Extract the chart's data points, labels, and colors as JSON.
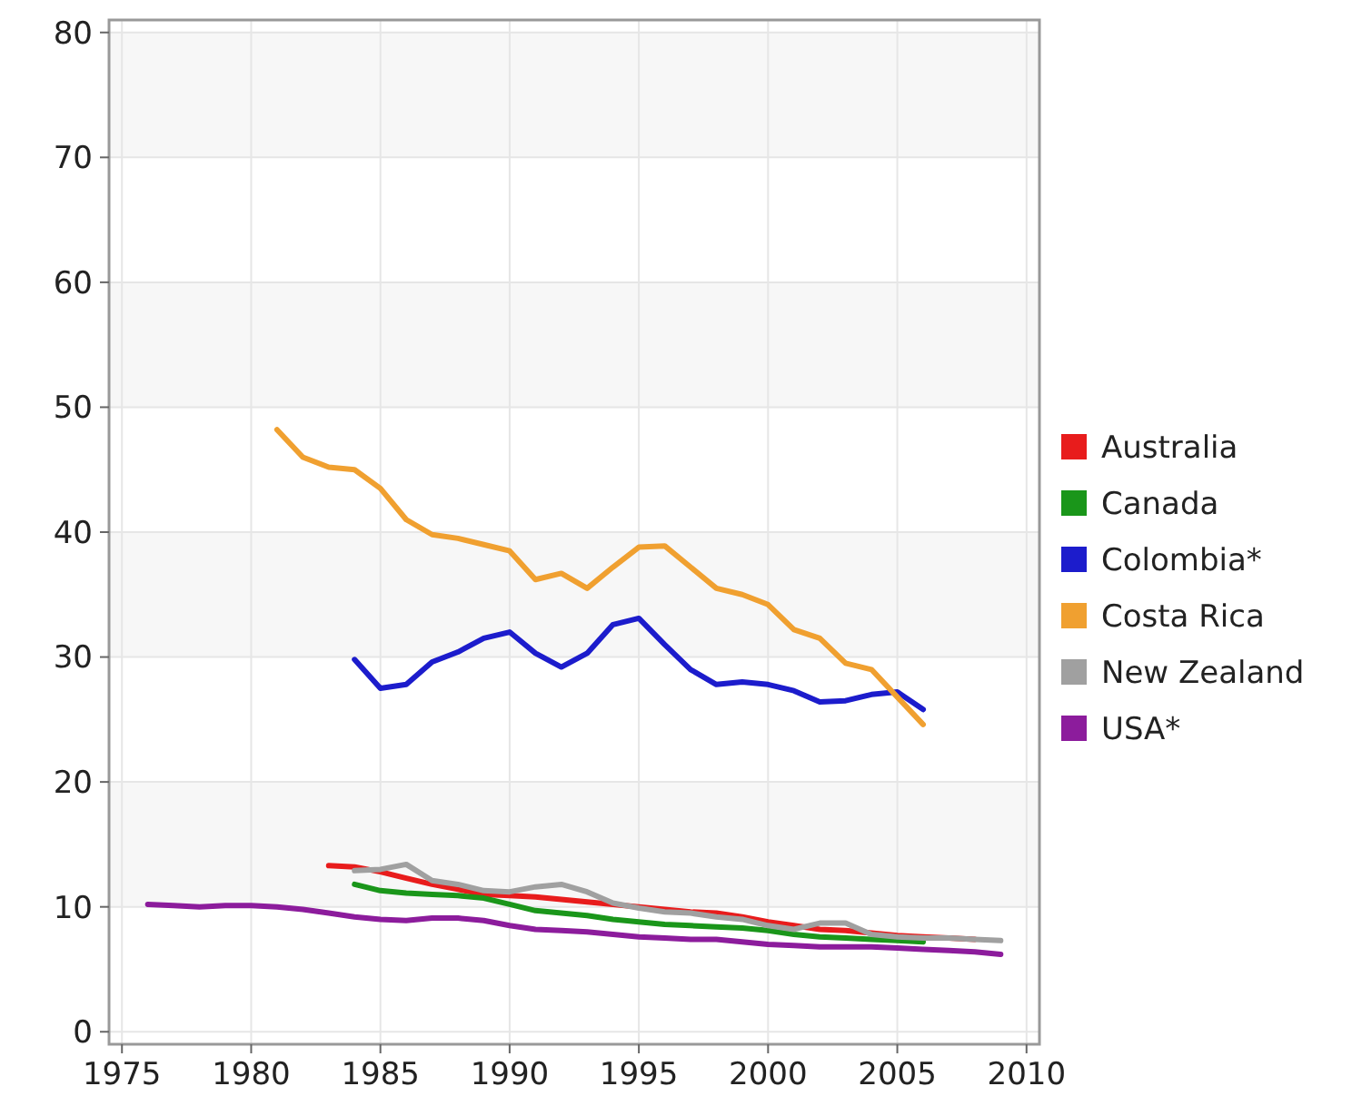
{
  "chart_data": {
    "type": "line",
    "xlim": [
      1974.5,
      2010.5
    ],
    "ylim": [
      -1,
      81
    ],
    "xticks": [
      1975,
      1980,
      1985,
      1990,
      1995,
      2000,
      2005,
      2010
    ],
    "yticks": [
      0,
      10,
      20,
      30,
      40,
      50,
      60,
      70,
      80
    ],
    "grid": true,
    "legend": "right",
    "marker": "none",
    "line_style": "solid",
    "series": [
      {
        "name": "Australia",
        "color": "#e81c1c",
        "x": [
          1983,
          1984,
          1985,
          1986,
          1987,
          1988,
          1989,
          1990,
          1991,
          1992,
          1993,
          1994,
          1995,
          1996,
          1997,
          1998,
          1999,
          2000,
          2001,
          2002,
          2003,
          2004,
          2005,
          2006,
          2007,
          2008
        ],
        "values": [
          13.3,
          13.2,
          12.8,
          12.3,
          11.8,
          11.4,
          11,
          10.9,
          10.8,
          10.6,
          10.4,
          10.2,
          10,
          9.8,
          9.6,
          9.5,
          9.2,
          8.8,
          8.5,
          8.2,
          8.1,
          7.9,
          7.7,
          7.6,
          7.5,
          7.4
        ]
      },
      {
        "name": "Canada",
        "color": "#1a961a",
        "x": [
          1984,
          1985,
          1986,
          1987,
          1988,
          1989,
          1990,
          1991,
          1992,
          1993,
          1994,
          1995,
          1996,
          1997,
          1998,
          1999,
          2000,
          2001,
          2002,
          2003,
          2004,
          2005,
          2006
        ],
        "values": [
          11.8,
          11.3,
          11.1,
          11,
          10.9,
          10.7,
          10.2,
          9.7,
          9.5,
          9.3,
          9,
          8.8,
          8.6,
          8.5,
          8.4,
          8.3,
          8.1,
          7.8,
          7.6,
          7.5,
          7.4,
          7.3,
          7.2
        ]
      },
      {
        "name": "Colombia*",
        "color": "#1c1ccc",
        "x": [
          1984,
          1985,
          1986,
          1987,
          1988,
          1989,
          1990,
          1991,
          1992,
          1993,
          1994,
          1995,
          1996,
          1997,
          1998,
          1999,
          2000,
          2001,
          2002,
          2003,
          2004,
          2005,
          2006
        ],
        "values": [
          29.8,
          27.5,
          27.8,
          29.6,
          30.4,
          31.5,
          32,
          30.3,
          29.2,
          30.3,
          32.6,
          33.1,
          31,
          29,
          27.8,
          28,
          27.8,
          27.3,
          26.4,
          26.5,
          27,
          27.2,
          25.8
        ]
      },
      {
        "name": "Costa Rica",
        "color": "#f0a030",
        "x": [
          1981,
          1982,
          1983,
          1984,
          1985,
          1986,
          1987,
          1988,
          1989,
          1990,
          1991,
          1992,
          1993,
          1994,
          1995,
          1996,
          1997,
          1998,
          1999,
          2000,
          2001,
          2002,
          2003,
          2004,
          2005,
          2006
        ],
        "values": [
          48.2,
          46,
          45.2,
          45,
          43.5,
          41,
          39.8,
          39.5,
          39,
          38.5,
          36.2,
          36.7,
          35.5,
          37.2,
          38.8,
          38.9,
          37.2,
          35.5,
          35,
          34.2,
          32.2,
          31.5,
          29.5,
          29,
          26.8,
          24.6
        ]
      },
      {
        "name": "New Zealand",
        "color": "#a0a0a0",
        "x": [
          1984,
          1985,
          1986,
          1987,
          1988,
          1989,
          1990,
          1991,
          1992,
          1993,
          1994,
          1995,
          1996,
          1997,
          1998,
          1999,
          2000,
          2001,
          2002,
          2003,
          2004,
          2005,
          2006,
          2007,
          2008,
          2009
        ],
        "values": [
          12.9,
          13,
          13.4,
          12.1,
          11.8,
          11.3,
          11.2,
          11.6,
          11.8,
          11.2,
          10.3,
          9.9,
          9.6,
          9.5,
          9.2,
          9,
          8.5,
          8.2,
          8.7,
          8.7,
          7.8,
          7.6,
          7.5,
          7.5,
          7.4,
          7.3
        ]
      },
      {
        "name": "USA*",
        "color": "#8c1c9c",
        "x": [
          1976,
          1977,
          1978,
          1979,
          1980,
          1981,
          1982,
          1983,
          1984,
          1985,
          1986,
          1987,
          1988,
          1989,
          1990,
          1991,
          1992,
          1993,
          1994,
          1995,
          1996,
          1997,
          1998,
          1999,
          2000,
          2001,
          2002,
          2003,
          2004,
          2005,
          2006,
          2007,
          2008,
          2009
        ],
        "values": [
          10.2,
          10.1,
          10,
          10.1,
          10.1,
          10,
          9.8,
          9.5,
          9.2,
          9,
          8.9,
          9.1,
          9.1,
          8.9,
          8.5,
          8.2,
          8.1,
          8,
          7.8,
          7.6,
          7.5,
          7.4,
          7.4,
          7.2,
          7,
          6.9,
          6.8,
          6.8,
          6.8,
          6.7,
          6.6,
          6.5,
          6.4,
          6.2
        ]
      }
    ]
  }
}
